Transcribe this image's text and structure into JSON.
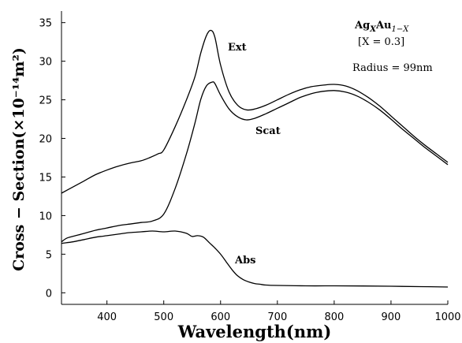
{
  "chart_data": {
    "type": "line",
    "xlabel": "Wavelength(nm)",
    "ylabel": "Cross − Section(×10⁻¹⁴m²)",
    "xlim": [
      320,
      1000
    ],
    "ylim": [
      -1.5,
      36.5
    ],
    "xticks": [
      400,
      500,
      600,
      700,
      800,
      900,
      1000
    ],
    "yticks": [
      0,
      5,
      10,
      15,
      20,
      25,
      30,
      35
    ],
    "grid": false,
    "legend": "none",
    "series": [
      {
        "name": "Ext",
        "x": [
          320,
          340,
          360,
          380,
          400,
          420,
          440,
          460,
          475,
          490,
          500,
          520,
          540,
          555,
          565,
          575,
          583,
          590,
          600,
          615,
          630,
          645,
          660,
          680,
          700,
          720,
          740,
          760,
          780,
          800,
          820,
          840,
          860,
          880,
          900,
          920,
          940,
          960,
          980,
          1000
        ],
        "y": [
          12.9,
          13.7,
          14.5,
          15.3,
          15.9,
          16.4,
          16.8,
          17.1,
          17.5,
          18.0,
          18.5,
          21.5,
          25.0,
          28.0,
          31.0,
          33.3,
          34.0,
          33.1,
          29.5,
          26.0,
          24.3,
          23.7,
          23.8,
          24.3,
          25.0,
          25.7,
          26.3,
          26.7,
          26.9,
          27.0,
          26.8,
          26.2,
          25.3,
          24.2,
          22.9,
          21.6,
          20.3,
          19.1,
          18.0,
          16.9
        ]
      },
      {
        "name": "Scat",
        "x": [
          320,
          330,
          350,
          380,
          400,
          420,
          440,
          460,
          480,
          500,
          520,
          540,
          555,
          565,
          575,
          585,
          590,
          600,
          615,
          630,
          645,
          660,
          680,
          700,
          720,
          740,
          760,
          780,
          800,
          820,
          840,
          860,
          880,
          900,
          920,
          940,
          960,
          980,
          1000
        ],
        "y": [
          6.6,
          7.1,
          7.5,
          8.1,
          8.4,
          8.7,
          8.9,
          9.1,
          9.3,
          10.2,
          13.5,
          18.0,
          22.0,
          25.0,
          26.8,
          27.3,
          27.1,
          25.6,
          23.8,
          22.8,
          22.4,
          22.6,
          23.2,
          23.9,
          24.6,
          25.3,
          25.8,
          26.1,
          26.2,
          26.0,
          25.5,
          24.7,
          23.7,
          22.5,
          21.2,
          20.0,
          18.8,
          17.7,
          16.6
        ]
      },
      {
        "name": "Abs",
        "x": [
          320,
          340,
          360,
          380,
          400,
          420,
          440,
          460,
          480,
          500,
          520,
          540,
          550,
          560,
          570,
          580,
          590,
          600,
          610,
          620,
          630,
          640,
          650,
          660,
          670,
          680,
          700,
          750,
          800,
          850,
          900,
          950,
          1000
        ],
        "y": [
          6.4,
          6.6,
          6.9,
          7.2,
          7.4,
          7.6,
          7.8,
          7.9,
          8.0,
          7.9,
          8.0,
          7.7,
          7.3,
          7.4,
          7.2,
          6.5,
          5.8,
          5.0,
          4.0,
          3.0,
          2.2,
          1.7,
          1.4,
          1.2,
          1.1,
          1.0,
          0.95,
          0.9,
          0.9,
          0.88,
          0.85,
          0.8,
          0.75
        ]
      }
    ],
    "annotations": {
      "title_base": "Ag",
      "title_sub1": "X",
      "title_mid": "Au",
      "title_sub2": "1−X",
      "composition": "[X = 0.3]",
      "radius": "Radius = 99nm"
    }
  }
}
